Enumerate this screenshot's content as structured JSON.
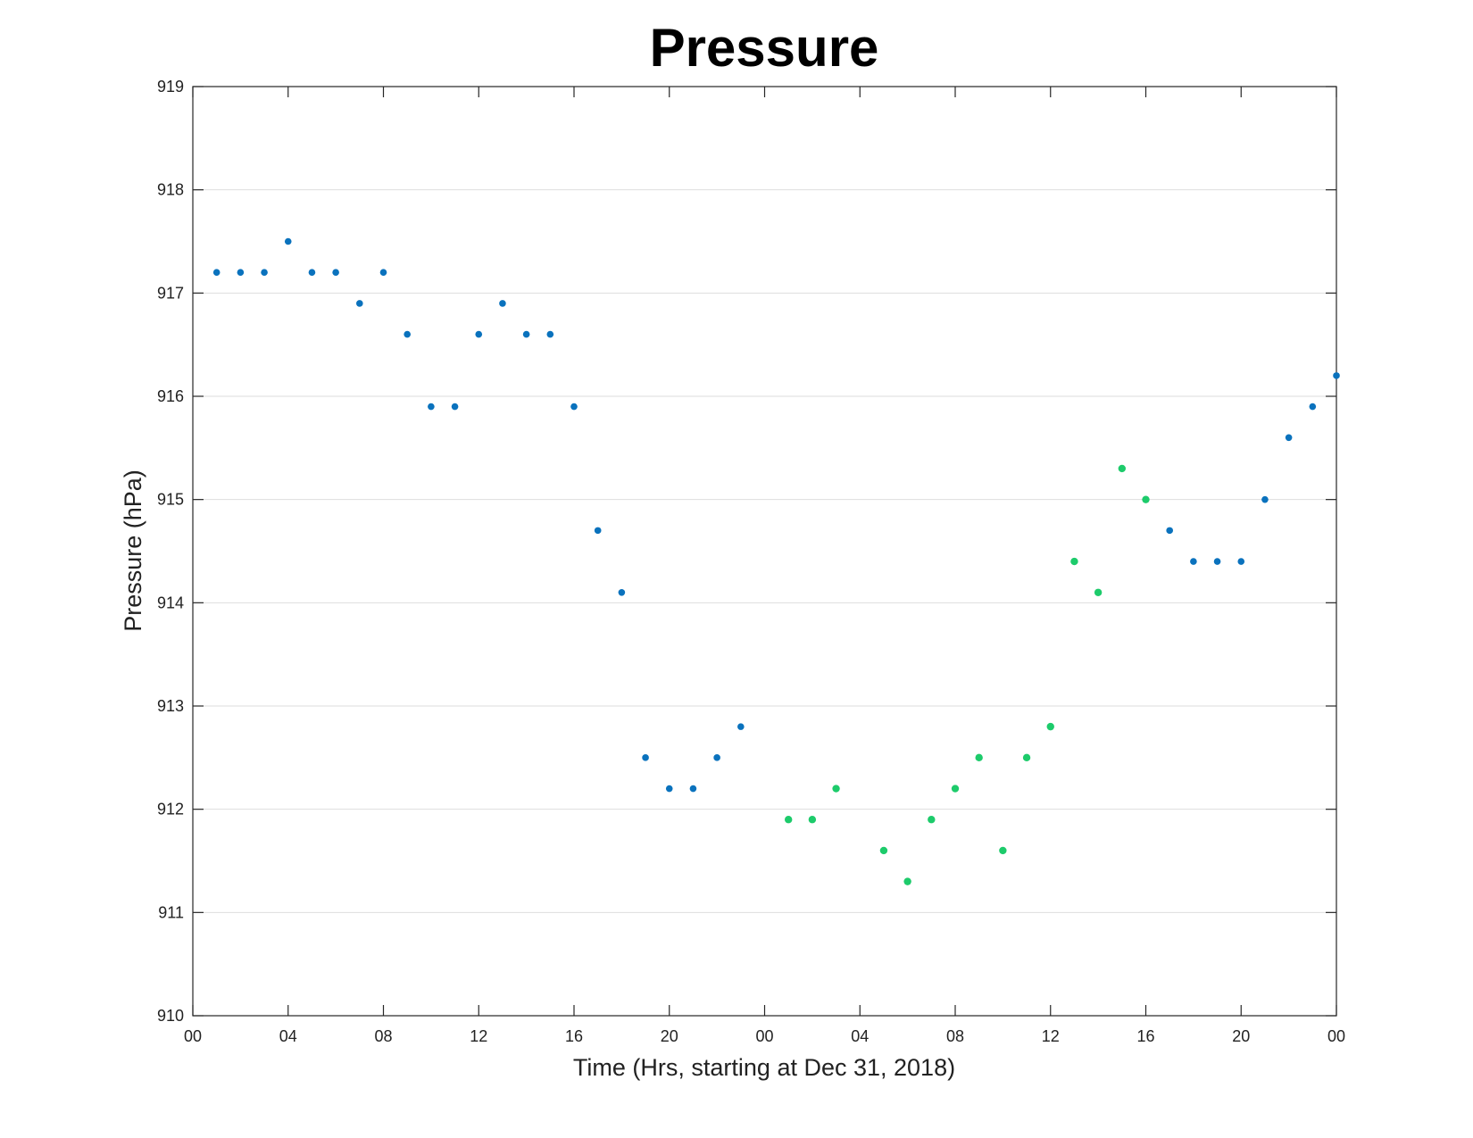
{
  "chart_data": {
    "type": "scatter",
    "title": "Pressure",
    "xlabel": "Time (Hrs, starting at Dec 31, 2018)",
    "ylabel": "Pressure (hPa)",
    "x_unit": "hours",
    "xlim": [
      0,
      48
    ],
    "ylim": [
      910,
      919
    ],
    "grid": true,
    "x_ticks": [
      0,
      4,
      8,
      12,
      16,
      20,
      24,
      28,
      32,
      36,
      40,
      44,
      48
    ],
    "x_tick_labels": [
      "00",
      "04",
      "08",
      "12",
      "16",
      "20",
      "00",
      "04",
      "08",
      "12",
      "16",
      "20",
      "00"
    ],
    "y_ticks": [
      910,
      911,
      912,
      913,
      914,
      915,
      916,
      917,
      918,
      919
    ],
    "y_tick_labels": [
      "910",
      "911",
      "912",
      "913",
      "914",
      "915",
      "916",
      "917",
      "918",
      "919"
    ],
    "series": [
      {
        "color": "#0a72bd",
        "points": [
          [
            1,
            917.2
          ],
          [
            2,
            917.2
          ],
          [
            3,
            917.2
          ],
          [
            4,
            917.5
          ],
          [
            5,
            917.2
          ],
          [
            6,
            917.2
          ],
          [
            7,
            916.9
          ],
          [
            8,
            917.2
          ],
          [
            9,
            916.6
          ],
          [
            10,
            915.9
          ],
          [
            11,
            915.9
          ],
          [
            12,
            916.6
          ],
          [
            13,
            916.9
          ],
          [
            14,
            916.6
          ],
          [
            15,
            916.6
          ],
          [
            16,
            915.9
          ],
          [
            17,
            914.7
          ],
          [
            18,
            914.1
          ],
          [
            19,
            912.5
          ],
          [
            20,
            912.2
          ],
          [
            21,
            912.2
          ],
          [
            22,
            912.5
          ],
          [
            23,
            912.8
          ],
          [
            41,
            914.7
          ],
          [
            42,
            914.4
          ],
          [
            43,
            914.4
          ],
          [
            44,
            914.4
          ],
          [
            45,
            915.0
          ],
          [
            46,
            915.6
          ],
          [
            47,
            915.9
          ],
          [
            48,
            916.2
          ]
        ]
      },
      {
        "color": "#1dcb6b",
        "points": [
          [
            25,
            911.9
          ],
          [
            26,
            911.9
          ],
          [
            27,
            912.2
          ],
          [
            29,
            911.6
          ],
          [
            30,
            911.3
          ],
          [
            31,
            911.9
          ],
          [
            32,
            912.2
          ],
          [
            33,
            912.5
          ],
          [
            34,
            911.6
          ],
          [
            35,
            912.5
          ],
          [
            36,
            912.8
          ],
          [
            37,
            914.4
          ],
          [
            38,
            914.1
          ],
          [
            39,
            915.3
          ],
          [
            40,
            915.0
          ]
        ]
      }
    ]
  }
}
